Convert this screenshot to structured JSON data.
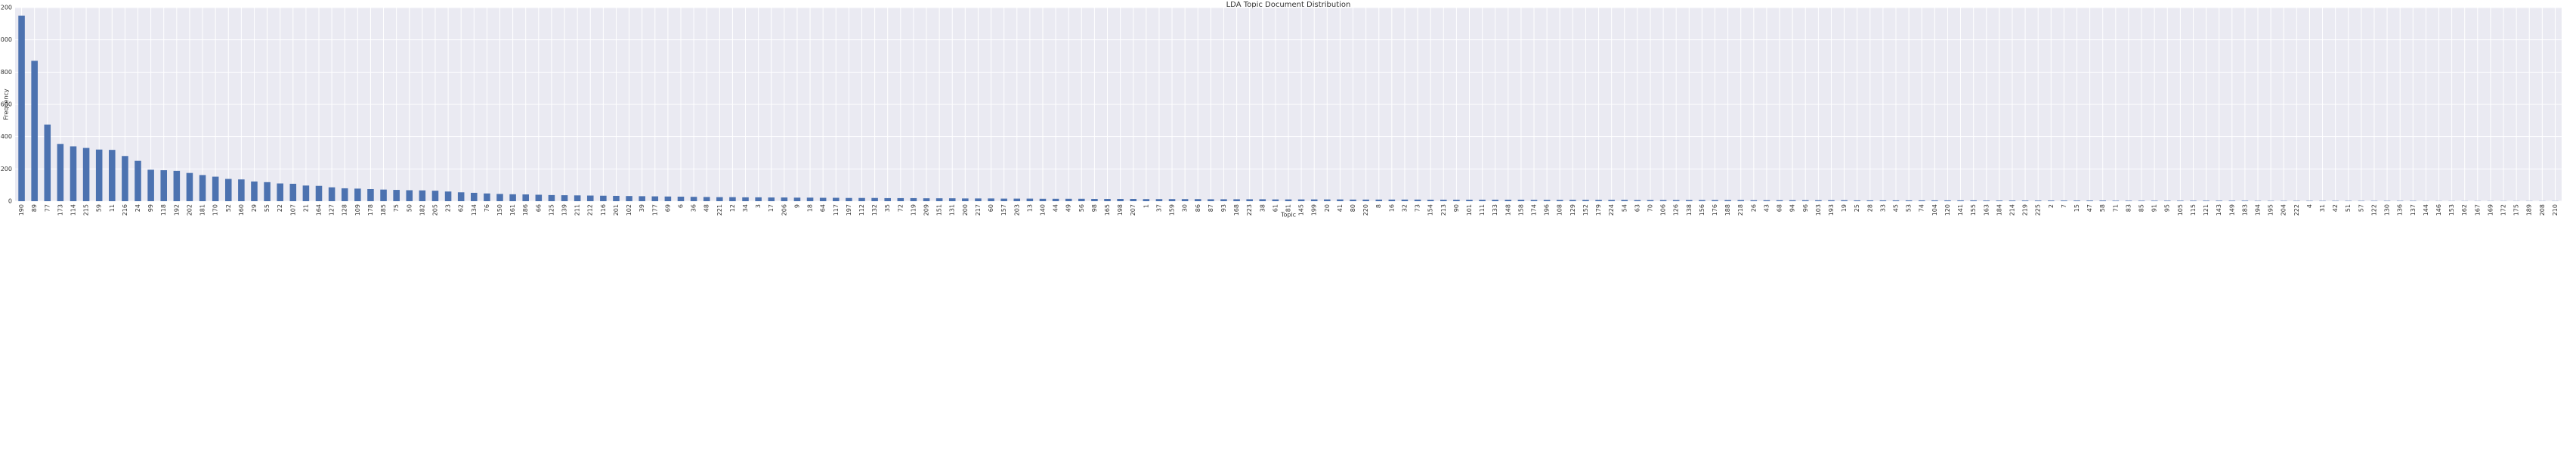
{
  "chart_data": {
    "type": "bar",
    "title": "LDA Topic Document Distribution",
    "x_label": "Topic",
    "y_label": "Frequency",
    "categories": [
      "190",
      "89",
      "77",
      "173",
      "114",
      "215",
      "59",
      "11",
      "216",
      "24",
      "99",
      "118",
      "192",
      "202",
      "181",
      "170",
      "52",
      "160",
      "29",
      "55",
      "22",
      "107",
      "21",
      "164",
      "127",
      "128",
      "109",
      "178",
      "185",
      "75",
      "50",
      "182",
      "205",
      "23",
      "62",
      "134",
      "76",
      "150",
      "161",
      "186",
      "66",
      "125",
      "139",
      "211",
      "212",
      "116",
      "201",
      "102",
      "39",
      "177",
      "69",
      "6",
      "36",
      "48",
      "221",
      "12",
      "34",
      "3",
      "17",
      "206",
      "9",
      "18",
      "64",
      "117",
      "197",
      "112",
      "132",
      "35",
      "72",
      "119",
      "209",
      "151",
      "131",
      "200",
      "217",
      "60",
      "157",
      "203",
      "13",
      "140",
      "44",
      "49",
      "56",
      "98",
      "165",
      "198",
      "207",
      "1",
      "37",
      "159",
      "30",
      "86",
      "87",
      "93",
      "168",
      "223",
      "38",
      "61",
      "81",
      "145",
      "199",
      "20",
      "41",
      "80",
      "220",
      "8",
      "16",
      "32",
      "73",
      "154",
      "213",
      "90",
      "101",
      "111",
      "133",
      "148",
      "158",
      "174",
      "196",
      "108",
      "129",
      "152",
      "179",
      "224",
      "54",
      "63",
      "70",
      "106",
      "126",
      "138",
      "156",
      "176",
      "188",
      "218",
      "26",
      "43",
      "68",
      "94",
      "96",
      "103",
      "193",
      "19",
      "25",
      "28",
      "33",
      "45",
      "53",
      "74",
      "104",
      "120",
      "141",
      "155",
      "163",
      "184",
      "214",
      "219",
      "225",
      "2",
      "7",
      "15",
      "47",
      "58",
      "71",
      "83",
      "85",
      "91",
      "95",
      "105",
      "115",
      "121",
      "143",
      "149",
      "183",
      "194",
      "195",
      "204",
      "222",
      "4",
      "31",
      "42",
      "51",
      "57",
      "122",
      "130",
      "136",
      "137",
      "144",
      "146",
      "153",
      "162",
      "167",
      "169",
      "172",
      "175",
      "189",
      "208",
      "210"
    ],
    "values": [
      1150,
      870,
      475,
      355,
      340,
      330,
      320,
      318,
      280,
      250,
      195,
      192,
      188,
      175,
      162,
      152,
      138,
      135,
      122,
      118,
      110,
      108,
      97,
      95,
      86,
      80,
      78,
      75,
      72,
      70,
      68,
      67,
      65,
      60,
      55,
      52,
      48,
      45,
      43,
      42,
      40,
      38,
      37,
      36,
      35,
      34,
      33,
      32,
      31,
      30,
      29,
      28,
      27,
      26,
      25,
      25,
      24,
      24,
      23,
      23,
      22,
      22,
      21,
      21,
      20,
      20,
      20,
      19,
      19,
      19,
      18,
      18,
      18,
      17,
      17,
      17,
      16,
      16,
      16,
      15,
      15,
      15,
      15,
      14,
      14,
      14,
      14,
      13,
      13,
      13,
      13,
      13,
      12,
      12,
      12,
      12,
      12,
      11,
      11,
      11,
      11,
      11,
      11,
      10,
      10,
      10,
      10,
      10,
      10,
      9,
      9,
      9,
      9,
      9,
      9,
      9,
      9,
      8,
      8,
      8,
      8,
      8,
      8,
      8,
      8,
      7,
      7,
      7,
      7,
      7,
      7,
      7,
      7,
      7,
      6,
      6,
      6,
      6,
      6,
      6,
      6,
      6,
      5,
      5,
      5,
      5,
      5,
      5,
      5,
      5,
      5,
      5,
      4,
      4,
      4,
      4,
      4,
      4,
      4,
      4,
      4,
      4,
      3,
      3,
      3,
      3,
      3,
      3,
      3,
      3,
      3,
      3,
      3,
      2,
      2,
      2,
      2,
      2,
      2,
      2,
      2,
      2,
      2,
      2,
      2,
      2,
      1,
      1,
      1,
      1,
      1,
      1,
      1,
      1,
      1,
      1,
      1
    ],
    "color": "#4c72b0",
    "ylim": [
      0,
      1200
    ],
    "yticks": [
      0,
      200,
      400,
      600,
      800,
      1000,
      1200
    ],
    "grid": true
  }
}
